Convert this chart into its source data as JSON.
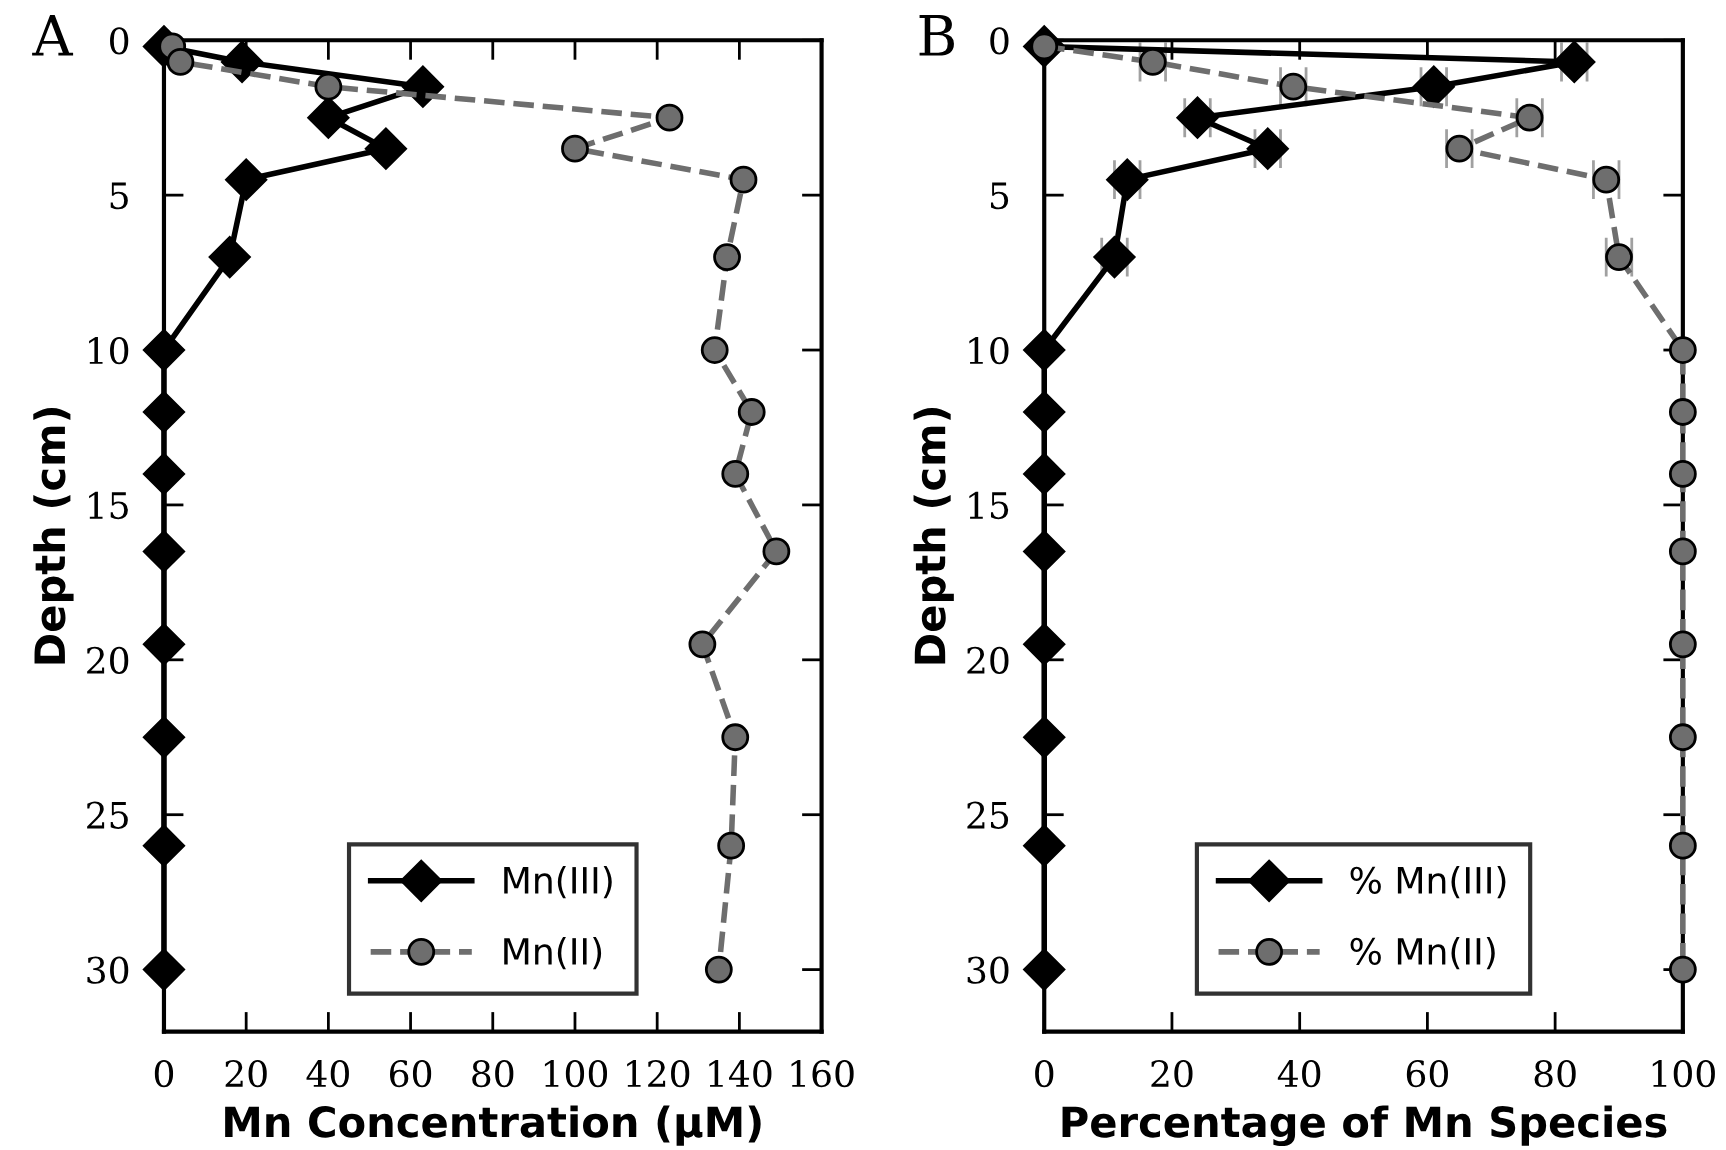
{
  "chart_data": [
    {
      "type": "line",
      "title": "A",
      "xlabel": "Mn Concentration (μM)",
      "ylabel": "Depth (cm)",
      "xlim": [
        0,
        160
      ],
      "xticks": [
        0,
        20,
        40,
        60,
        80,
        100,
        120,
        140,
        160
      ],
      "ylim": [
        32,
        0
      ],
      "yticks": [
        0,
        5,
        10,
        15,
        20,
        25,
        30
      ],
      "grid": false,
      "legend": "bottom",
      "series": [
        {
          "name": "Mn(III)",
          "color": "#000000",
          "marker": "diamond",
          "line_style": "solid",
          "x": [
            0,
            19,
            63,
            40,
            54,
            20,
            16,
            0,
            0,
            0,
            0,
            0,
            0,
            0,
            0
          ],
          "values": [
            0.2,
            0.7,
            1.5,
            2.5,
            3.5,
            4.5,
            7,
            10,
            12,
            14,
            16.5,
            19.5,
            22.5,
            26,
            30
          ]
        },
        {
          "name": "Mn(II)",
          "color": "#6e6e6e",
          "marker": "circle",
          "line_style": "dashed",
          "x": [
            2,
            4,
            40,
            123,
            100,
            141,
            137,
            134,
            143,
            139,
            149,
            131,
            139,
            138,
            135
          ],
          "values": [
            0.2,
            0.7,
            1.5,
            2.5,
            3.5,
            4.5,
            7,
            10,
            12,
            14,
            16.5,
            19.5,
            22.5,
            26,
            30
          ]
        }
      ]
    },
    {
      "type": "line",
      "title": "B",
      "xlabel": "Percentage of Mn Species",
      "ylabel": "Depth (cm)",
      "xlim": [
        0,
        100
      ],
      "xticks": [
        0,
        20,
        40,
        60,
        80,
        100
      ],
      "ylim": [
        32,
        0
      ],
      "yticks": [
        0,
        5,
        10,
        15,
        20,
        25,
        30
      ],
      "grid": false,
      "legend": "bottom",
      "series": [
        {
          "name": "% Mn(III)",
          "color": "#000000",
          "marker": "diamond",
          "line_style": "solid",
          "x": [
            0,
            83,
            61,
            24,
            35,
            13,
            11,
            0,
            0,
            0,
            0,
            0,
            0,
            0,
            0
          ],
          "values": [
            0.2,
            0.7,
            1.5,
            2.5,
            3.5,
            4.5,
            7,
            10,
            12,
            14,
            16.5,
            19.5,
            22.5,
            26,
            30
          ],
          "xerrors": [
            null,
            2,
            2,
            2,
            2,
            2,
            2,
            null,
            null,
            null,
            null,
            null,
            null,
            null,
            null
          ]
        },
        {
          "name": "% Mn(II)",
          "color": "#6e6e6e",
          "marker": "circle",
          "line_style": "dashed",
          "x": [
            0,
            17,
            39,
            76,
            65,
            88,
            90,
            100,
            100,
            100,
            100,
            100,
            100,
            100,
            100
          ],
          "values": [
            0.2,
            0.7,
            1.5,
            2.5,
            3.5,
            4.5,
            7,
            10,
            12,
            14,
            16.5,
            19.5,
            22.5,
            26,
            30
          ],
          "xerrors": [
            null,
            2,
            2,
            2,
            2,
            2,
            2,
            null,
            null,
            null,
            null,
            null,
            null,
            null,
            null
          ]
        }
      ]
    }
  ]
}
